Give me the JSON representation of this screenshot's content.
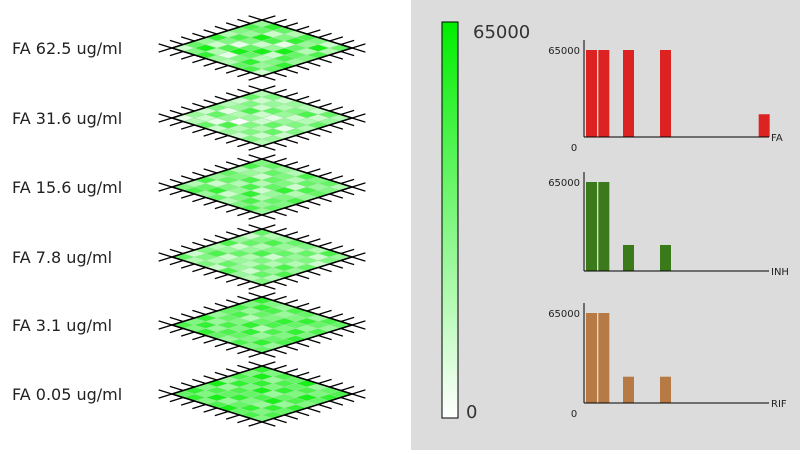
{
  "chart_data": [
    {
      "type": "heatmap",
      "description_free": true,
      "layers": [
        {
          "label": "FA 62.5 ug/ml",
          "grid": [
            [
              0.2,
              0.5,
              0.8,
              0.4,
              0.3,
              0.6,
              0.7,
              0.2
            ],
            [
              0.6,
              0.9,
              0.3,
              0.1,
              0.5,
              0.8,
              0.4,
              0.6
            ],
            [
              0.4,
              0.2,
              0.7,
              0.9,
              0.6,
              0.3,
              0.5,
              0.8
            ],
            [
              0.8,
              0.5,
              0.1,
              0.6,
              0.9,
              0.2,
              0.7,
              0.4
            ],
            [
              0.3,
              0.7,
              0.5,
              0.2,
              0.4,
              0.9,
              0.6,
              0.5
            ],
            [
              0.5,
              0.4,
              0.9,
              0.7,
              0.1,
              0.6,
              0.3,
              0.7
            ],
            [
              0.7,
              0.6,
              0.2,
              0.5,
              0.8,
              0.4,
              0.9,
              0.3
            ],
            [
              0.4,
              0.8,
              0.6,
              0.3,
              0.7,
              0.5,
              0.2,
              0.6
            ]
          ]
        },
        {
          "label": "FA 31.6 ug/ml",
          "grid": [
            [
              0.1,
              0.3,
              0.6,
              0.2,
              0.4,
              0.2,
              0.5,
              0.3
            ],
            [
              0.4,
              0.2,
              0.1,
              0.7,
              0.3,
              0.5,
              0.2,
              0.4
            ],
            [
              0.2,
              0.6,
              0.4,
              0.0,
              0.5,
              0.3,
              0.6,
              0.2
            ],
            [
              0.5,
              0.1,
              0.3,
              0.4,
              0.2,
              0.6,
              0.1,
              0.5
            ],
            [
              0.3,
              0.4,
              0.7,
              0.2,
              0.1,
              0.4,
              0.5,
              0.3
            ],
            [
              0.2,
              0.5,
              0.2,
              0.6,
              0.4,
              0.2,
              0.3,
              0.6
            ],
            [
              0.6,
              0.2,
              0.4,
              0.3,
              0.5,
              0.7,
              0.2,
              0.4
            ],
            [
              0.3,
              0.5,
              0.2,
              0.4,
              0.3,
              0.2,
              0.6,
              0.3
            ]
          ]
        },
        {
          "label": "FA 15.6 ug/ml",
          "grid": [
            [
              0.5,
              0.7,
              0.4,
              0.6,
              0.3,
              0.5,
              0.7,
              0.4
            ],
            [
              0.3,
              0.6,
              0.8,
              0.2,
              0.5,
              0.7,
              0.4,
              0.6
            ],
            [
              0.7,
              0.2,
              0.5,
              0.4,
              0.8,
              0.3,
              0.6,
              0.5
            ],
            [
              0.4,
              0.6,
              0.3,
              0.7,
              0.2,
              0.4,
              0.5,
              0.7
            ],
            [
              0.6,
              0.5,
              0.7,
              0.3,
              0.6,
              0.8,
              0.3,
              0.4
            ],
            [
              0.3,
              0.4,
              0.2,
              0.6,
              0.5,
              0.2,
              0.7,
              0.6
            ],
            [
              0.7,
              0.3,
              0.6,
              0.5,
              0.3,
              0.6,
              0.4,
              0.5
            ],
            [
              0.5,
              0.6,
              0.4,
              0.3,
              0.7,
              0.5,
              0.6,
              0.3
            ]
          ]
        },
        {
          "label": "FA 7.8 ug/ml",
          "grid": [
            [
              0.6,
              0.3,
              0.5,
              0.2,
              0.7,
              0.4,
              0.3,
              0.5
            ],
            [
              0.2,
              0.5,
              0.3,
              0.6,
              0.4,
              0.2,
              0.6,
              0.3
            ],
            [
              0.5,
              0.7,
              0.2,
              0.4,
              0.3,
              0.6,
              0.4,
              0.7
            ],
            [
              0.3,
              0.4,
              0.6,
              0.3,
              0.5,
              0.3,
              0.7,
              0.4
            ],
            [
              0.7,
              0.2,
              0.4,
              0.7,
              0.2,
              0.5,
              0.3,
              0.6
            ],
            [
              0.4,
              0.6,
              0.3,
              0.5,
              0.6,
              0.4,
              0.5,
              0.2
            ],
            [
              0.2,
              0.5,
              0.7,
              0.4,
              0.3,
              0.6,
              0.2,
              0.5
            ],
            [
              0.6,
              0.3,
              0.4,
              0.6,
              0.5,
              0.3,
              0.7,
              0.4
            ]
          ]
        },
        {
          "label": "FA 3.1 ug/ml",
          "grid": [
            [
              0.7,
              0.5,
              0.8,
              0.6,
              0.4,
              0.7,
              0.5,
              0.6
            ],
            [
              0.5,
              0.8,
              0.4,
              0.7,
              0.6,
              0.5,
              0.8,
              0.4
            ],
            [
              0.8,
              0.4,
              0.7,
              0.5,
              0.8,
              0.4,
              0.6,
              0.7
            ],
            [
              0.4,
              0.6,
              0.5,
              0.8,
              0.3,
              0.7,
              0.5,
              0.8
            ],
            [
              0.6,
              0.7,
              0.3,
              0.6,
              0.7,
              0.5,
              0.8,
              0.5
            ],
            [
              0.7,
              0.4,
              0.6,
              0.5,
              0.8,
              0.6,
              0.4,
              0.7
            ],
            [
              0.5,
              0.8,
              0.7,
              0.4,
              0.5,
              0.8,
              0.6,
              0.4
            ],
            [
              0.8,
              0.5,
              0.4,
              0.7,
              0.6,
              0.4,
              0.7,
              0.6
            ]
          ]
        },
        {
          "label": "FA 0.05 ug/ml",
          "grid": [
            [
              0.6,
              0.8,
              0.5,
              0.7,
              0.9,
              0.6,
              0.7,
              0.5
            ],
            [
              0.8,
              0.5,
              0.9,
              0.4,
              0.6,
              0.8,
              0.5,
              0.7
            ],
            [
              0.5,
              0.7,
              0.6,
              0.8,
              0.5,
              0.4,
              0.8,
              0.6
            ],
            [
              0.9,
              0.4,
              0.7,
              0.6,
              0.7,
              0.9,
              0.4,
              0.8
            ],
            [
              0.4,
              0.8,
              0.5,
              0.9,
              0.4,
              0.6,
              0.7,
              0.5
            ],
            [
              0.7,
              0.6,
              0.8,
              0.5,
              0.8,
              0.5,
              0.9,
              0.6
            ],
            [
              0.5,
              0.9,
              0.4,
              0.7,
              0.6,
              0.7,
              0.5,
              0.8
            ],
            [
              0.8,
              0.5,
              0.7,
              0.6,
              0.9,
              0.4,
              0.6,
              0.7
            ]
          ]
        }
      ]
    },
    {
      "type": "colorbar",
      "min": 0,
      "max": 65000,
      "min_label": "0",
      "max_label": "65000",
      "color_low": "#ffffff",
      "color_high": "#00ee00"
    },
    {
      "type": "bar",
      "name": "FA",
      "color": "#dd2222",
      "ymax_label": "65000",
      "zero_label": "0",
      "ylim": [
        0,
        65000
      ],
      "bars": [
        {
          "x": 0,
          "value": 65000
        },
        {
          "x": 1,
          "value": 65000
        },
        {
          "x": 3,
          "value": 65000
        },
        {
          "x": 6,
          "value": 65000
        },
        {
          "x": 14,
          "value": 17000
        }
      ],
      "x_slots": 15
    },
    {
      "type": "bar",
      "name": "INH",
      "color": "#3a7a1a",
      "ymax_label": "65000",
      "zero_label": "",
      "ylim": [
        0,
        65000
      ],
      "bars": [
        {
          "x": 0,
          "value": 65000
        },
        {
          "x": 1,
          "value": 65000
        },
        {
          "x": 3,
          "value": 19000
        },
        {
          "x": 6,
          "value": 19000
        }
      ],
      "x_slots": 15
    },
    {
      "type": "bar",
      "name": "RIF",
      "color": "#b87a45",
      "ymax_label": "65000",
      "zero_label": "0",
      "ylim": [
        0,
        65000
      ],
      "bars": [
        {
          "x": 0,
          "value": 65000
        },
        {
          "x": 1,
          "value": 65000
        },
        {
          "x": 3,
          "value": 19000
        },
        {
          "x": 6,
          "value": 19000
        }
      ],
      "x_slots": 15
    }
  ]
}
